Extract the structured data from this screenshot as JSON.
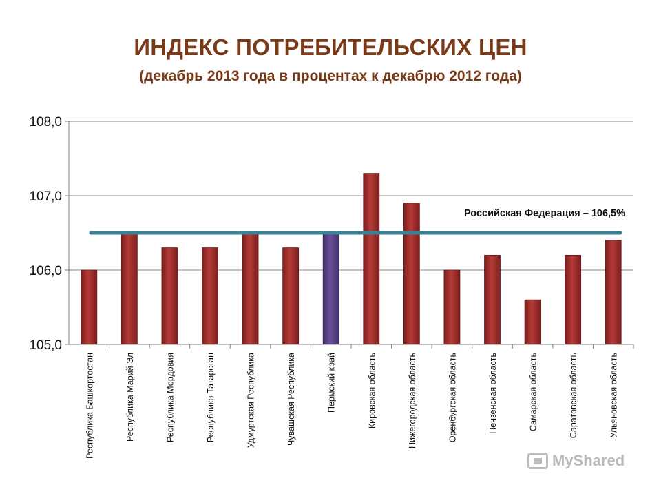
{
  "title": "ИНДЕКС ПОТРЕБИТЕЛЬСКИХ ЦЕН",
  "subtitle": "(декабрь 2013 года в процентах к декабрю 2012 года)",
  "watermark": "MyShared",
  "chart_data": {
    "type": "bar",
    "categories": [
      "Республика Башкортостан",
      "Республика Марий Эл",
      "Республика Мордовия",
      "Республика Татарстан",
      "Удмуртская Республика",
      "Чувашская Республика",
      "Пермский край",
      "Кировская область",
      "Нижегородская область",
      "Оренбургская область",
      "Пензенская область",
      "Самарская область",
      "Саратовская область",
      "Ульяновская область"
    ],
    "values": [
      106.0,
      106.5,
      106.3,
      106.3,
      106.5,
      106.3,
      106.5,
      107.3,
      106.9,
      106.0,
      106.2,
      105.6,
      106.2,
      106.4
    ],
    "highlight_category": "Пермский край",
    "ylim": [
      105.0,
      108.0
    ],
    "yticks": [
      "105,0",
      "106,0",
      "107,0",
      "108,0"
    ],
    "grid": true,
    "reference_line": {
      "value": 106.5,
      "label": "Российская Федерация – 106,5%"
    },
    "colors": {
      "bar": "#9b2d2b",
      "highlight_bar": "#5b3f86",
      "reference_line": "#3f8193",
      "grid": "#8a8a8a"
    }
  }
}
